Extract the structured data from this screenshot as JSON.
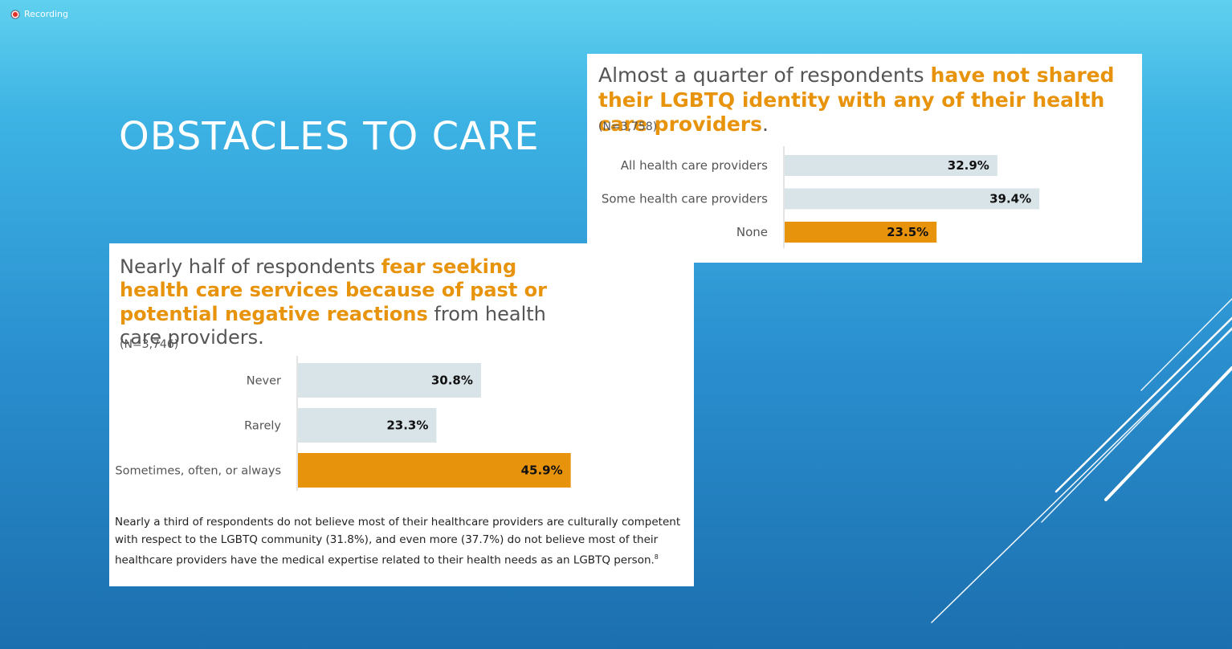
{
  "recording": {
    "label": "Recording",
    "icon": "record-icon"
  },
  "slide": {
    "title": "OBSTACLES TO CARE"
  },
  "colors": {
    "accent": "#e8930c",
    "bar": "#d9e4e8",
    "text": "#555555"
  },
  "card_top": {
    "heading_plain": "Almost a quarter of respondents ",
    "heading_highlight": "have not shared their LGBTQ identity with any of their health care providers",
    "heading_end": ".",
    "n": "(N=3,758)"
  },
  "card_bottom": {
    "heading_plain": "Nearly half of respondents ",
    "heading_highlight": "fear seeking health care services because of past or potential negative reactions",
    "heading_end": " from health care providers.",
    "n": "(N=3,746)",
    "footnote": "Nearly a third of respondents do not believe most of their healthcare providers are culturally competent with respect to the LGBTQ community (31.8%), and even more (37.7%) do not believe most of their healthcare providers have the medical expertise related to their health needs as an LGBTQ person.",
    "footnote_ref": "8"
  },
  "chart_data": [
    {
      "type": "bar",
      "orientation": "horizontal",
      "categories": [
        "All health care providers",
        "Some health care providers",
        "None"
      ],
      "values": [
        32.9,
        39.4,
        23.5
      ],
      "labels": [
        "32.9%",
        "39.4%",
        "23.5%"
      ],
      "highlight": [
        false,
        false,
        true
      ],
      "unit": "%"
    },
    {
      "type": "bar",
      "orientation": "horizontal",
      "categories": [
        "Never",
        "Rarely",
        "Sometimes, often, or always"
      ],
      "values": [
        30.8,
        23.3,
        45.9
      ],
      "labels": [
        "30.8%",
        "23.3%",
        "45.9%"
      ],
      "highlight": [
        false,
        false,
        true
      ],
      "unit": "%"
    }
  ]
}
